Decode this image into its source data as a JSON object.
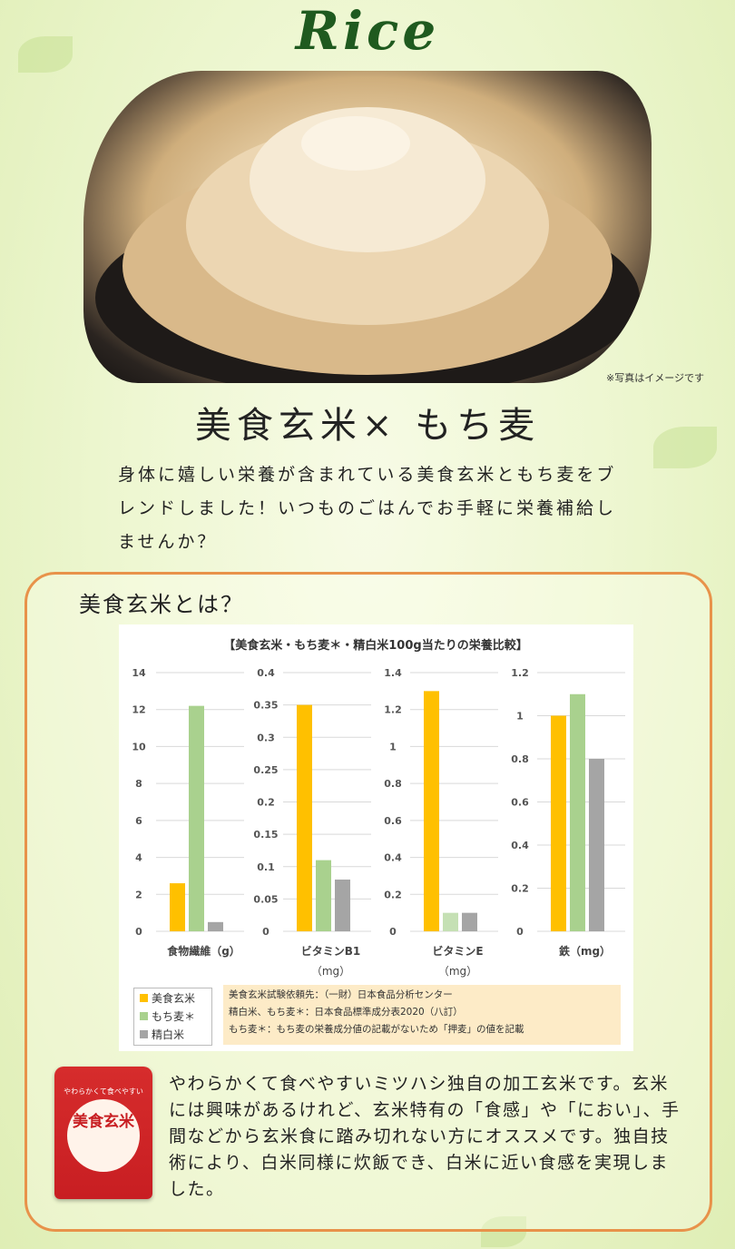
{
  "header": {
    "title": "Rice"
  },
  "photo": {
    "caption": "※写真はイメージです"
  },
  "main": {
    "heading": "美食玄米× もち麦",
    "intro": "身体に嬉しい栄養が含まれている美食玄米ともち麦をブレンドしました！いつものごはんでお手軽に栄養補給しませんか？"
  },
  "section": {
    "title": "美食玄米とは？",
    "description": "やわらかくて食べやすいミツハシ独自の加工玄米です。玄米には興味があるけれど、玄米特有の「食感」や「におい」、手間などから玄米食に踏み切れない方にオススメです。独自技術により、白米同様に炊飯でき、白米に近い食感を実現しました。"
  },
  "product": {
    "label": "やわらかくて食べやすい",
    "name": "美食玄米"
  },
  "colors": {
    "brown_rice": "#ffc000",
    "mochimugi": "#a9d18e",
    "mochimugi_light": "#c5e0b4",
    "white_rice": "#a5a5a5",
    "accent": "#e8924a"
  },
  "chart_data": {
    "title": "【美食玄米・もち麦＊・精白米100g当たりの栄養比較】",
    "type": "bar",
    "series_names": [
      "美食玄米",
      "もち麦＊",
      "精白米"
    ],
    "panels": [
      {
        "xlabel": "食物繊維（g）",
        "xlabel2": "",
        "ylim": [
          0,
          14
        ],
        "ticks": [
          "0",
          "2",
          "4",
          "6",
          "8",
          "10",
          "12",
          "14"
        ],
        "values": [
          2.6,
          12.2,
          0.5
        ]
      },
      {
        "xlabel": "ビタミンB1",
        "xlabel2": "（mg）",
        "ylim": [
          0,
          0.4
        ],
        "ticks": [
          "0",
          "0.05",
          "0.1",
          "0.15",
          "0.2",
          "0.25",
          "0.3",
          "0.35",
          "0.4"
        ],
        "values": [
          0.35,
          0.11,
          0.08
        ]
      },
      {
        "xlabel": "ビタミンE",
        "xlabel2": "（mg）",
        "ylim": [
          0,
          1.4
        ],
        "ticks": [
          "0",
          "0.2",
          "0.4",
          "0.6",
          "0.8",
          "1",
          "1.2",
          "1.4"
        ],
        "values": [
          1.3,
          0.1,
          0.1
        ]
      },
      {
        "xlabel": "鉄（mg）",
        "xlabel2": "",
        "ylim": [
          0,
          1.2
        ],
        "ticks": [
          "0",
          "0.2",
          "0.4",
          "0.6",
          "0.8",
          "1",
          "1.2"
        ],
        "values": [
          1.0,
          1.1,
          0.8
        ]
      }
    ],
    "notes": [
      "美食玄米試験依頼先：（一財）日本食品分析センター",
      "精白米、もち麦＊：日本食品標準成分表2020（八訂）",
      "もち麦＊：もち麦の栄養成分値の記載がないため「押麦」の値を記載"
    ]
  }
}
